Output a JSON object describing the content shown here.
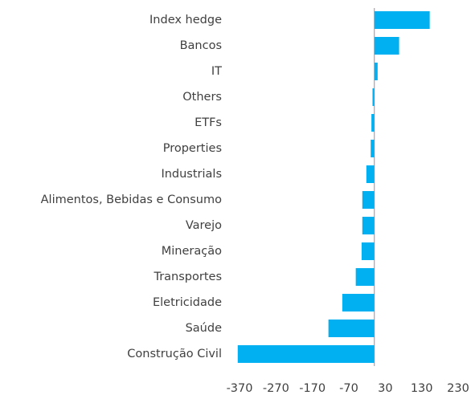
{
  "chart_data": {
    "type": "hbar",
    "categories": [
      "Index hedge",
      "Bancos",
      "IT",
      "Others",
      "ETFs",
      "Properties",
      "Industrials",
      "Alimentos, Bebidas e Consumo",
      "Varejo",
      "Mineração",
      "Transportes",
      "Eletricidade",
      "Saúde",
      "Construção Civil"
    ],
    "values": [
      152,
      68,
      9,
      -5,
      -8,
      -10,
      -22,
      -33,
      -33,
      -35,
      -51,
      -88,
      -126,
      -375
    ],
    "color": "#00b0f0",
    "xlim": [
      -380,
      230
    ],
    "xticks": [
      -370,
      -270,
      -170,
      -70,
      30,
      130,
      230
    ]
  }
}
